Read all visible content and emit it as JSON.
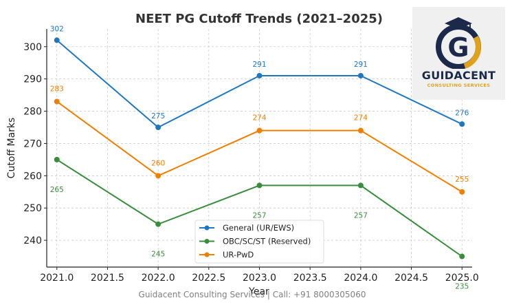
{
  "chart_data": {
    "type": "line",
    "title": "NEET PG Cutoff Trends (2021–2025)",
    "xlabel": "Year",
    "ylabel": "Cutoff Marks",
    "x": [
      2021,
      2022,
      2023,
      2024,
      2025
    ],
    "xlim": [
      2020.9,
      2025.1
    ],
    "ylim": [
      231.7,
      305.5
    ],
    "x_ticks": [
      "2021.0",
      "2021.5",
      "2022.0",
      "2022.5",
      "2023.0",
      "2023.5",
      "2024.0",
      "2024.5",
      "2025.0"
    ],
    "y_ticks": [
      "240",
      "250",
      "260",
      "270",
      "280",
      "290",
      "300"
    ],
    "grid": true,
    "legend_position": "bottom-center",
    "series": [
      {
        "name": "General (UR/EWS)",
        "color": "#1f77c4",
        "values": [
          302,
          275,
          291,
          291,
          276
        ],
        "labels": [
          "302",
          "275",
          "291",
          "291",
          "276"
        ]
      },
      {
        "name": "OBC/SC/ST (Reserved)",
        "color": "#388e3c",
        "values": [
          265,
          245,
          257,
          257,
          235
        ],
        "labels": [
          "265",
          "245",
          "257",
          "257",
          "235"
        ]
      },
      {
        "name": "UR-PwD",
        "color": "#f07f00",
        "values": [
          283,
          260,
          274,
          274,
          255
        ],
        "labels": [
          "283",
          "260",
          "274",
          "274",
          "255"
        ]
      }
    ]
  },
  "logo": {
    "name": "GUIDACENT",
    "tagline": "CONSULTING SERVICES"
  },
  "footer": {
    "text": "Guidacent Consulting Services | Call: +91 8000305060"
  }
}
